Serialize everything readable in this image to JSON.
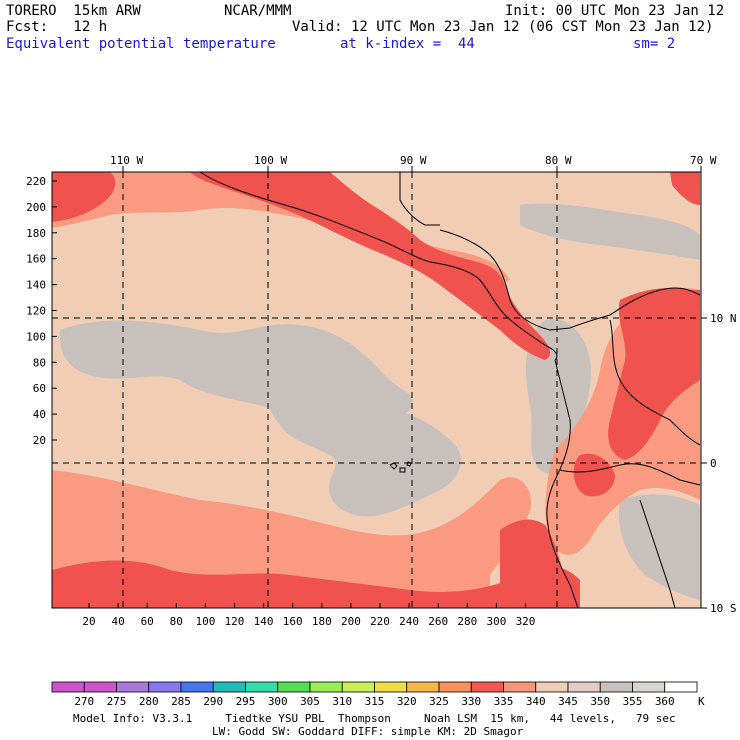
{
  "header": {
    "model": "TORERO  15km ARW",
    "center": "NCAR/MMM",
    "init": "Init: 00 UTC Mon 23 Jan 12",
    "fcst": "Fcst:   12 h",
    "valid": "Valid: 12 UTC Mon 23 Jan 12 (06 CST Mon 23 Jan 12)",
    "field": "Equivalent potential temperature",
    "level": "at k-index =  44",
    "smooth": "sm= 2"
  },
  "map": {
    "lon_labels": [
      "110 W",
      "100 W",
      "90 W",
      "80 W",
      "70 W"
    ],
    "lat_labels": [
      "10 N",
      "0",
      "10 S"
    ],
    "y_ticks": [
      "220",
      "200",
      "180",
      "160",
      "140",
      "120",
      "100",
      "80",
      "60",
      "40",
      "20"
    ],
    "x_ticks": [
      "20",
      "40",
      "60",
      "80",
      "100",
      "120",
      "140",
      "160",
      "180",
      "200",
      "220",
      "240",
      "260",
      "280",
      "300",
      "320"
    ],
    "colors": {
      "low": "#f0cdb4",
      "grey": "#c8c0bc",
      "mid": "#fa9a80",
      "high": "#f0524e"
    }
  },
  "legend": {
    "values": [
      "270",
      "275",
      "280",
      "285",
      "290",
      "295",
      "300",
      "305",
      "310",
      "315",
      "320",
      "325",
      "330",
      "335",
      "340",
      "345",
      "350",
      "355",
      "360"
    ],
    "unit": "K",
    "colors": [
      "#cc55cc",
      "#aa77dd",
      "#8877ee",
      "#4477ee",
      "#22bbbb",
      "#33ddaa",
      "#55dd55",
      "#99ee55",
      "#ccee55",
      "#eedd44",
      "#f5b845",
      "#f8925c",
      "#f15a4e",
      "#f8967c",
      "#f0cdb4",
      "#e3ccc4",
      "#c9c1be",
      "#d8d5d2",
      "#ffffff"
    ]
  },
  "footer": {
    "line1": "Model Info: V3.3.1     Tiedtke YSU PBL  Thompson     Noah LSM  15 km,   44 levels,   79 sec",
    "line2": "LW: Godd SW: Goddard DIFF: simple KM: 2D Smagor"
  }
}
